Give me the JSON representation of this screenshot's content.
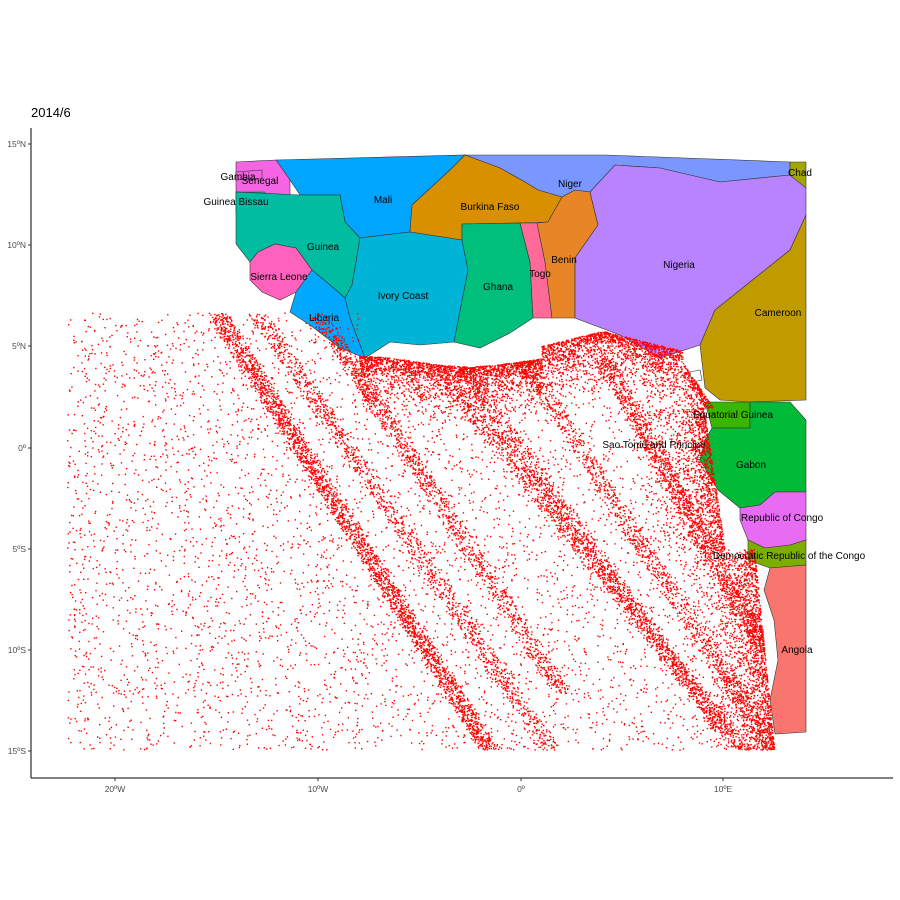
{
  "title": "2014/6",
  "axes": {
    "x_ticks": [
      "20ºW",
      "10ºW",
      "0º",
      "10ºE"
    ],
    "y_ticks": [
      "15ºN",
      "10ºN",
      "5ºN",
      "0º",
      "5ºS",
      "10ºS",
      "15ºS"
    ]
  },
  "countries": [
    {
      "name": "Gambia",
      "color": "#F564E3"
    },
    {
      "name": "Senegal",
      "color": "#F564E3"
    },
    {
      "name": "Guinea Bissau",
      "color": "#00C0AF"
    },
    {
      "name": "Mali",
      "color": "#00A5FF"
    },
    {
      "name": "Burkina Faso",
      "color": "#D89000"
    },
    {
      "name": "Niger",
      "color": "#7997FF"
    },
    {
      "name": "Chad",
      "color": "#A3A500"
    },
    {
      "name": "Guinea",
      "color": "#00BCA0"
    },
    {
      "name": "Benin",
      "color": "#E88526"
    },
    {
      "name": "Nigeria",
      "color": "#B983FF"
    },
    {
      "name": "Sierra Leone",
      "color": "#FF62BC"
    },
    {
      "name": "Togo",
      "color": "#FF6A98"
    },
    {
      "name": "Ghana",
      "color": "#00BF7D"
    },
    {
      "name": "Ivory Coast",
      "color": "#00B4D8"
    },
    {
      "name": "Liberia",
      "color": "#00A9FF"
    },
    {
      "name": "Cameroon",
      "color": "#C09B00"
    },
    {
      "name": "Equatorial Guinea",
      "color": "#39B600"
    },
    {
      "name": "Sao Tome and Principe",
      "color": "#FFFFFF"
    },
    {
      "name": "Gabon",
      "color": "#00BA38"
    },
    {
      "name": "Republic of Congo",
      "color": "#E76BF3"
    },
    {
      "name": "Democratic Republic of the Congo",
      "color": "#7CAE00"
    },
    {
      "name": "Angola",
      "color": "#F8766D"
    }
  ],
  "track_points": {
    "color": "#FF0000",
    "lon_range": [
      -22.5,
      14
    ],
    "lat_range": [
      -15,
      6.7
    ]
  },
  "map_extent": {
    "lon": [
      -24.5,
      18
    ],
    "lat": [
      -16.5,
      16
    ]
  }
}
